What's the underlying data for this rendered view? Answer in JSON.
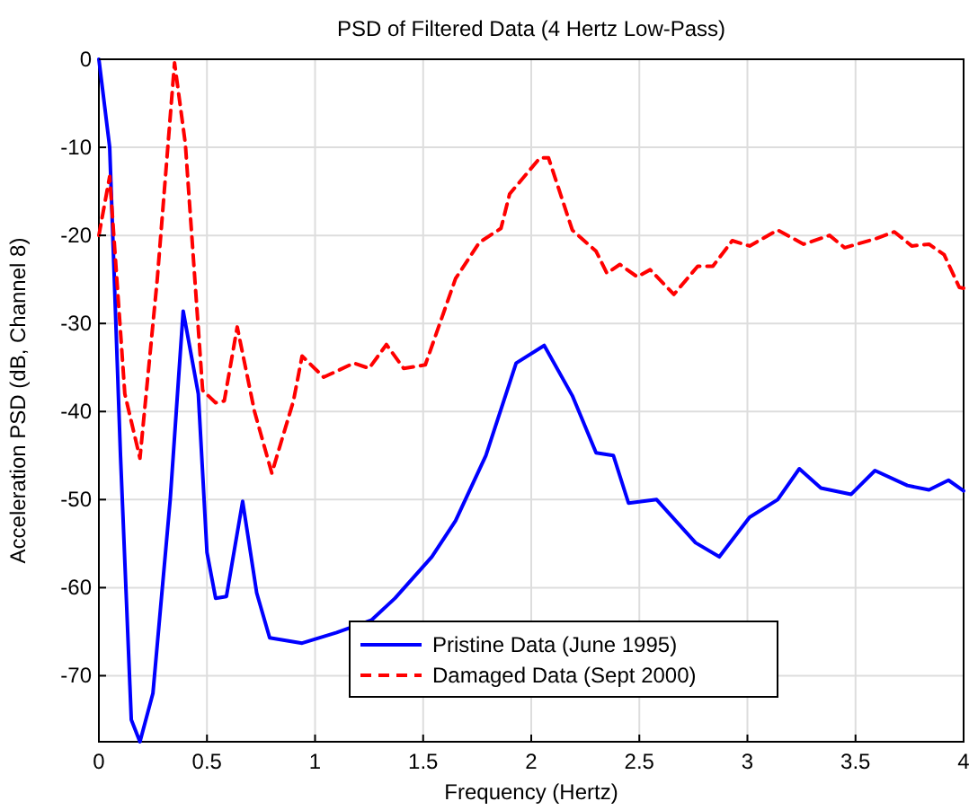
{
  "chart_data": {
    "type": "line",
    "title": "PSD of Filtered Data (4 Hertz Low-Pass)",
    "xlabel": "Frequency (Hertz)",
    "ylabel": "Acceleration PSD (dB, Channel 8)",
    "xlim": [
      0,
      4
    ],
    "xticks": [
      0,
      0.5,
      1,
      1.5,
      2,
      2.5,
      3,
      3.5,
      4
    ],
    "ylim": [
      -77.5,
      0
    ],
    "yticks": [
      0,
      -10,
      -20,
      -30,
      -40,
      -50,
      -60,
      -70
    ],
    "grid": true,
    "legend": "bottom",
    "series": [
      {
        "name": "Pristine Data (June 1995)",
        "color": "#0000ff",
        "line_style": "solid",
        "x": [
          0,
          0.05,
          0.1,
          0.15,
          0.19,
          0.25,
          0.33,
          0.39,
          0.46,
          0.5,
          0.54,
          0.59,
          0.665,
          0.73,
          0.79,
          0.94,
          1.1,
          1.26,
          1.37,
          1.54,
          1.65,
          1.79,
          1.93,
          2.06,
          2.19,
          2.3,
          2.38,
          2.45,
          2.58,
          2.76,
          2.87,
          3.01,
          3.14,
          3.24,
          3.34,
          3.48,
          3.59,
          3.74,
          3.84,
          3.93,
          4
        ],
        "values": [
          0,
          -10,
          -45,
          -75,
          -77.5,
          -72,
          -50,
          -28.6,
          -38,
          -56,
          -61.2,
          -61,
          -50.2,
          -60.6,
          -65.7,
          -66.3,
          -65.1,
          -63.7,
          -61.2,
          -56.5,
          -52.4,
          -45,
          -34.5,
          -32.5,
          -38.2,
          -44.7,
          -45,
          -50.4,
          -50,
          -54.9,
          -56.5,
          -52,
          -50,
          -46.5,
          -48.7,
          -49.4,
          -46.7,
          -48.4,
          -48.9,
          -47.8,
          -49
        ]
      },
      {
        "name": "Damaged Data (Sept 2000)",
        "color": "#ff0000",
        "line_style": "dashed",
        "x": [
          0,
          0.05,
          0.12,
          0.19,
          0.27,
          0.35,
          0.4,
          0.48,
          0.54,
          0.58,
          0.64,
          0.72,
          0.8,
          0.9,
          0.94,
          1.04,
          1.18,
          1.25,
          1.33,
          1.41,
          1.51,
          1.65,
          1.76,
          1.86,
          1.9,
          2.04,
          2.08,
          2.19,
          2.3,
          2.35,
          2.41,
          2.49,
          2.55,
          2.66,
          2.77,
          2.84,
          2.93,
          3.01,
          3.14,
          3.26,
          3.38,
          3.45,
          3.59,
          3.68,
          3.76,
          3.84,
          3.91,
          3.98,
          4
        ],
        "values": [
          -20,
          -13.3,
          -38,
          -45.3,
          -25,
          -0.4,
          -9.6,
          -37.6,
          -39,
          -38.8,
          -30.4,
          -40,
          -47,
          -38.8,
          -33.7,
          -36.1,
          -34.5,
          -35.1,
          -32.4,
          -35.1,
          -34.7,
          -24.9,
          -20.8,
          -19.2,
          -15.3,
          -11.2,
          -11.2,
          -19.4,
          -21.8,
          -24.3,
          -23.3,
          -24.7,
          -23.9,
          -26.7,
          -23.5,
          -23.5,
          -20.6,
          -21.2,
          -19.4,
          -21,
          -20,
          -21.4,
          -20.4,
          -19.6,
          -21.2,
          -21,
          -22.2,
          -25.9,
          -26
        ]
      }
    ]
  }
}
